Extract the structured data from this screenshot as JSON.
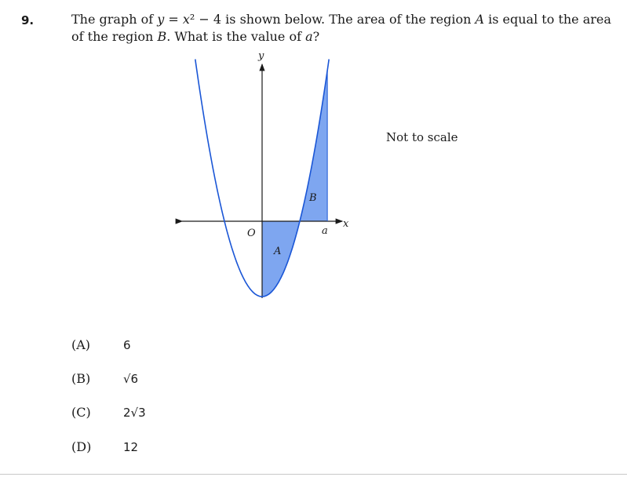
{
  "question": {
    "number": "9.",
    "text_part1": "The graph of ",
    "equation_y": "y",
    "equation_eq": " = ",
    "equation_x": "x",
    "equation_rest": "² − 4 is shown below. The area of the region ",
    "region_a": "A",
    "text_part2": " is equal to the area of the region ",
    "region_b": "B",
    "text_part3": ". What is the value of ",
    "var_a": "a",
    "text_part4": "?"
  },
  "note": "Not to scale",
  "graph": {
    "y_axis_label": "y",
    "x_axis_label": "x",
    "origin_label": "O",
    "region_a_label": "A",
    "region_b_label": "B",
    "a_label": "a",
    "curve_color": "#1a56d6",
    "fill_color": "#7ea6f0"
  },
  "choices": [
    {
      "label": "(A)",
      "value": "6"
    },
    {
      "label": "(B)",
      "value": "√6"
    },
    {
      "label": "(C)",
      "value": "2√3"
    },
    {
      "label": "(D)",
      "value": "12"
    }
  ]
}
